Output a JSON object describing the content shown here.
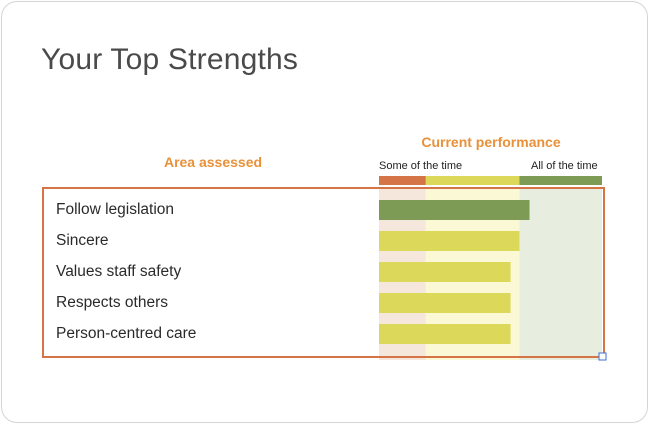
{
  "page": {
    "title_prefix": "Your Top ",
    "title_main": "Strengths"
  },
  "chart_data": {
    "type": "bar",
    "orientation": "horizontal",
    "title": "Your Top Strengths",
    "performance_label": "Current performance",
    "area_label": "Area assessed",
    "scale_low_label": "Some of the time",
    "scale_high_label": "All of the time",
    "xlim": [
      0,
      1
    ],
    "zones": [
      {
        "name": "low",
        "from": 0,
        "to": 0.21,
        "band_color": "#d47447",
        "bg_color": "#f6e7dd"
      },
      {
        "name": "mid",
        "from": 0.21,
        "to": 0.63,
        "band_color": "#dcd85a",
        "bg_color": "#fbf8d5"
      },
      {
        "name": "high",
        "from": 0.63,
        "to": 1,
        "band_color": "#7e9b55",
        "bg_color": "#e8eedf"
      }
    ],
    "categories": [
      "Follow legislation",
      "Sincere",
      "Values staff safety",
      "Respects others",
      "Person-centred care"
    ],
    "values": [
      0.675,
      0.63,
      0.59,
      0.59,
      0.59
    ],
    "bar_colors": [
      "#7e9b55",
      "#dcd85a",
      "#dcd85a",
      "#dcd85a",
      "#dcd85a"
    ]
  },
  "colors": {
    "highlight_border": "#d47447",
    "accent": "#e8913a",
    "corner_handle": "#3b6fd4"
  }
}
